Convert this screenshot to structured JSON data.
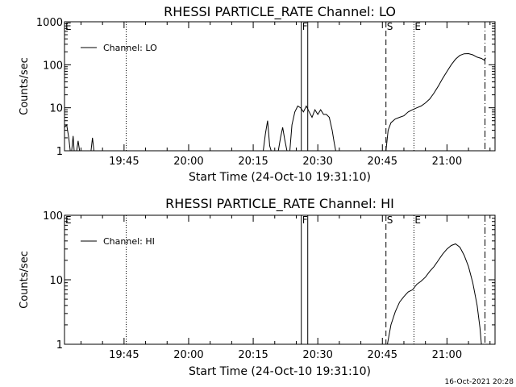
{
  "chart_data": [
    {
      "type": "line",
      "title": "RHESSI PARTICLE_RATE Channel: LO",
      "xlabel": "Start Time (24-Oct-10 19:31:10)",
      "ylabel": "Counts/sec",
      "log_y": true,
      "ylim": [
        1,
        1000
      ],
      "y_ticks": [
        {
          "value": 1,
          "label": "1"
        },
        {
          "value": 10,
          "label": "10"
        },
        {
          "value": 100,
          "label": "100"
        },
        {
          "value": 1000,
          "label": "1000"
        }
      ],
      "xlim": [
        "19:31:10",
        "21:11:10"
      ],
      "x_ticks": [
        "19:45",
        "20:00",
        "20:15",
        "20:30",
        "20:45",
        "21:00"
      ],
      "legend": "top-left",
      "series": [
        {
          "name": "Channel: LO",
          "segments": [
            [
              [
                "19:31:10",
                3.5
              ],
              [
                "19:31:40",
                4
              ],
              [
                "19:32:10",
                2.0
              ],
              [
                "19:32:30",
                1.0
              ]
            ],
            [
              [
                "19:32:50",
                1.0
              ],
              [
                "19:33:10",
                2.2
              ],
              [
                "19:33:25",
                1.0
              ]
            ],
            [
              [
                "19:34:00",
                1.0
              ],
              [
                "19:34:20",
                1.7
              ],
              [
                "19:34:40",
                1.0
              ]
            ],
            [
              [
                "19:37:20",
                1.0
              ],
              [
                "19:37:40",
                2.0
              ],
              [
                "19:38:00",
                1.0
              ]
            ],
            [
              [
                "20:17:20",
                1.0
              ],
              [
                "20:17:50",
                2.5
              ],
              [
                "20:18:20",
                5.0
              ],
              [
                "20:18:50",
                1.3
              ],
              [
                "20:19:10",
                1.0
              ]
            ],
            [
              [
                "20:20:50",
                1.0
              ],
              [
                "20:21:20",
                2.0
              ],
              [
                "20:21:50",
                3.5
              ],
              [
                "20:22:20",
                1.8
              ],
              [
                "20:22:50",
                1.0
              ]
            ],
            [
              [
                "20:23:30",
                1.0
              ],
              [
                "20:24:00",
                4
              ],
              [
                "20:24:40",
                8
              ],
              [
                "20:25:20",
                11
              ],
              [
                "20:26:00",
                10
              ],
              [
                "20:26:40",
                8
              ],
              [
                "20:27:20",
                11
              ],
              [
                "20:28:00",
                8
              ],
              [
                "20:28:40",
                6
              ],
              [
                "20:29:20",
                9
              ],
              [
                "20:30:00",
                7
              ],
              [
                "20:30:40",
                9
              ],
              [
                "20:31:20",
                7
              ],
              [
                "20:32:00",
                7
              ],
              [
                "20:32:40",
                6
              ],
              [
                "20:33:20",
                3
              ],
              [
                "20:33:50",
                1.5
              ],
              [
                "20:34:10",
                1.0
              ]
            ],
            [
              [
                "20:45:50",
                1.0
              ],
              [
                "20:46:20",
                3.0
              ],
              [
                "20:47:00",
                4.5
              ],
              [
                "20:48:00",
                5.5
              ],
              [
                "20:49:00",
                6
              ],
              [
                "20:50:00",
                6.5
              ],
              [
                "20:51:00",
                8
              ],
              [
                "20:52:00",
                9
              ],
              [
                "20:53:00",
                10
              ],
              [
                "20:54:00",
                11
              ],
              [
                "20:55:00",
                13
              ],
              [
                "20:56:00",
                16
              ],
              [
                "20:57:00",
                22
              ],
              [
                "20:58:00",
                32
              ],
              [
                "20:59:00",
                48
              ],
              [
                "21:00:00",
                70
              ],
              [
                "21:01:00",
                100
              ],
              [
                "21:02:00",
                135
              ],
              [
                "21:03:00",
                165
              ],
              [
                "21:04:00",
                180
              ],
              [
                "21:05:00",
                182
              ],
              [
                "21:06:00",
                170
              ],
              [
                "21:07:00",
                150
              ],
              [
                "21:08:00",
                140
              ],
              [
                "21:08:40",
                128
              ],
              [
                "21:09:00",
                145
              ]
            ]
          ]
        }
      ],
      "markers": [
        {
          "label": "E",
          "time": "19:31:10",
          "style": "none"
        },
        {
          "label": "",
          "time": "19:45:30",
          "style": "dotted"
        },
        {
          "label": "F",
          "time": "20:26:10",
          "style": "solid"
        },
        {
          "label": "",
          "time": "20:27:40",
          "style": "solid"
        },
        {
          "label": "S",
          "time": "20:45:50",
          "style": "dashed"
        },
        {
          "label": "E",
          "time": "20:52:20",
          "style": "dotted"
        },
        {
          "label": "",
          "time": "21:08:50",
          "style": "dashdot"
        }
      ]
    },
    {
      "type": "line",
      "title": "RHESSI PARTICLE_RATE Channel: HI",
      "xlabel": "Start Time (24-Oct-10 19:31:10)",
      "ylabel": "Counts/sec",
      "log_y": true,
      "ylim": [
        1,
        100
      ],
      "y_ticks": [
        {
          "value": 1,
          "label": "1"
        },
        {
          "value": 10,
          "label": "10"
        },
        {
          "value": 100,
          "label": "100"
        }
      ],
      "xlim": [
        "19:31:10",
        "21:11:10"
      ],
      "x_ticks": [
        "19:45",
        "20:00",
        "20:15",
        "20:30",
        "20:45",
        "21:00"
      ],
      "legend": "top-left",
      "series": [
        {
          "name": "Channel: HI",
          "segments": [
            [
              [
                "20:46:10",
                1.0
              ],
              [
                "20:47:00",
                2.0
              ],
              [
                "20:48:00",
                3.2
              ],
              [
                "20:49:00",
                4.5
              ],
              [
                "20:50:00",
                5.5
              ],
              [
                "20:51:00",
                6.5
              ],
              [
                "20:52:00",
                7
              ],
              [
                "20:53:00",
                8.5
              ],
              [
                "20:54:00",
                9.5
              ],
              [
                "20:55:00",
                11
              ],
              [
                "20:56:00",
                13.5
              ],
              [
                "20:57:00",
                16
              ],
              [
                "20:58:00",
                20
              ],
              [
                "20:59:00",
                25
              ],
              [
                "21:00:00",
                30
              ],
              [
                "21:01:00",
                34
              ],
              [
                "21:02:00",
                36
              ],
              [
                "21:03:00",
                32
              ],
              [
                "21:04:00",
                24
              ],
              [
                "21:05:00",
                16
              ],
              [
                "21:06:00",
                9
              ],
              [
                "21:07:00",
                4
              ],
              [
                "21:07:40",
                1.8
              ],
              [
                "21:08:00",
                1.0
              ]
            ]
          ]
        }
      ],
      "markers": [
        {
          "label": "E",
          "time": "19:31:10",
          "style": "none"
        },
        {
          "label": "",
          "time": "19:45:30",
          "style": "dotted"
        },
        {
          "label": "F",
          "time": "20:26:10",
          "style": "solid"
        },
        {
          "label": "",
          "time": "20:27:40",
          "style": "solid"
        },
        {
          "label": "S",
          "time": "20:45:50",
          "style": "dashed"
        },
        {
          "label": "E",
          "time": "20:52:20",
          "style": "dotted"
        },
        {
          "label": "",
          "time": "21:08:50",
          "style": "dashdot"
        }
      ]
    }
  ],
  "footer": {
    "timestamp": "16-Oct-2021 20:28"
  }
}
